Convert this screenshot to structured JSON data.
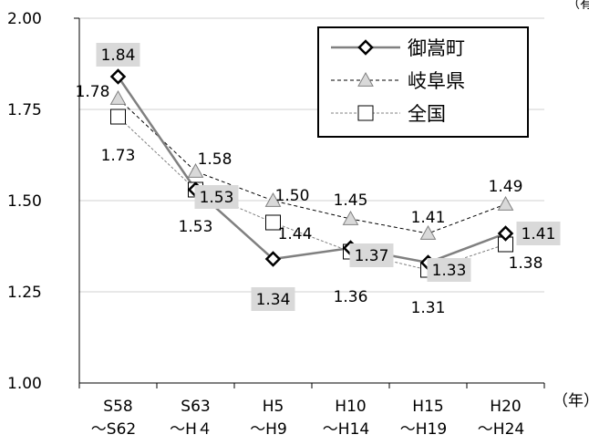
{
  "chart_data": {
    "type": "line",
    "title": "",
    "unit_corner": "（有配",
    "x_unit": "（年）",
    "categories": [
      [
        "S58",
        "～S62"
      ],
      [
        "S63",
        "～H４"
      ],
      [
        "H5",
        "～H9"
      ],
      [
        "H10",
        "～H14"
      ],
      [
        "H15",
        "～H19"
      ],
      [
        "H20",
        "～H24"
      ]
    ],
    "ylim": [
      1.0,
      2.0
    ],
    "yticks": [
      "1.00",
      "1.25",
      "1.50",
      "1.75",
      "2.00"
    ],
    "grid": true,
    "legend_position": "top-right",
    "series": [
      {
        "name": "御嵩町",
        "marker": "diamond",
        "line": "solid",
        "color": "#808080",
        "values": [
          1.84,
          1.53,
          1.34,
          1.37,
          1.33,
          1.41
        ],
        "labels": [
          "1.84",
          "1.53",
          "1.34",
          "1.37",
          "1.33",
          "1.41"
        ]
      },
      {
        "name": "岐阜県",
        "marker": "triangle",
        "line": "dashed",
        "color": "#000000",
        "values": [
          1.78,
          1.58,
          1.5,
          1.45,
          1.41,
          1.49
        ],
        "labels": [
          "1.78",
          "1.58",
          "1.50",
          "1.45",
          "1.41",
          "1.49"
        ]
      },
      {
        "name": "全国",
        "marker": "square",
        "line": "dashed",
        "color": "#808080",
        "values": [
          1.73,
          1.53,
          1.44,
          1.36,
          1.31,
          1.38
        ],
        "labels": [
          "1.73",
          "1.53",
          "1.44",
          "1.36",
          "1.31",
          "1.38"
        ]
      }
    ]
  }
}
